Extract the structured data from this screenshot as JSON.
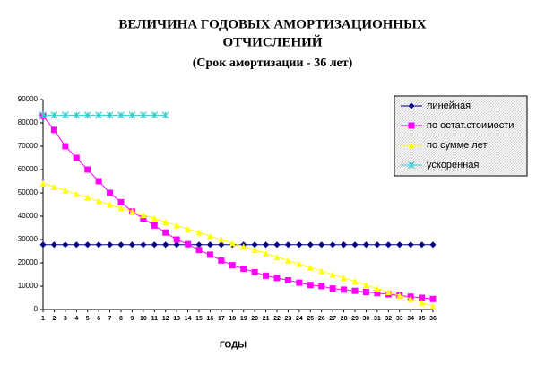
{
  "chart_data": {
    "type": "line",
    "title": [
      "ВЕЛИЧИНА ГОДОВЫХ АМОРТИЗАЦИОННЫХ",
      "ОТЧИСЛЕНИЙ"
    ],
    "subtitle": "(Срок амортизации - 36 лет)",
    "x_label": "ГОДЫ",
    "x": [
      1,
      2,
      3,
      4,
      5,
      6,
      7,
      8,
      9,
      10,
      11,
      12,
      13,
      14,
      15,
      16,
      17,
      18,
      19,
      20,
      21,
      22,
      23,
      24,
      25,
      26,
      27,
      28,
      29,
      30,
      31,
      32,
      33,
      34,
      35,
      36
    ],
    "xlim": [
      1,
      36
    ],
    "ylim": [
      0,
      90000
    ],
    "yticks": [
      0,
      10000,
      20000,
      30000,
      40000,
      50000,
      60000,
      70000,
      80000,
      90000
    ],
    "grid": false,
    "legend": "upper right",
    "series": [
      {
        "name": "линейная",
        "color": "#000080",
        "marker": "diamond",
        "values": [
          27778,
          27778,
          27778,
          27778,
          27778,
          27778,
          27778,
          27778,
          27778,
          27778,
          27778,
          27778,
          27778,
          27778,
          27778,
          27778,
          27778,
          27778,
          27778,
          27778,
          27778,
          27778,
          27778,
          27778,
          27778,
          27778,
          27778,
          27778,
          27778,
          27778,
          27778,
          27778,
          27778,
          27778,
          27778,
          27778
        ]
      },
      {
        "name": "по остат.стоимости",
        "color": "#ff00ff",
        "marker": "square",
        "values": [
          83000,
          77000,
          70000,
          65000,
          60000,
          55000,
          50000,
          46000,
          42000,
          39000,
          36000,
          33000,
          30000,
          28000,
          25500,
          23500,
          21000,
          19000,
          17500,
          16000,
          14500,
          13500,
          12500,
          11500,
          10500,
          10000,
          9000,
          8500,
          8000,
          7500,
          7000,
          6500,
          6000,
          5500,
          5000,
          4500
        ]
      },
      {
        "name": "по сумме лет",
        "color": "#ffff00",
        "marker": "triangle",
        "values": [
          54054,
          52553,
          51051,
          49550,
          48048,
          46547,
          45045,
          43544,
          42042,
          40541,
          39039,
          37538,
          36036,
          34535,
          33033,
          31532,
          30030,
          28529,
          27027,
          25526,
          24024,
          22523,
          21021,
          19520,
          18018,
          16517,
          15015,
          13514,
          12012,
          10511,
          9009,
          7508,
          6006,
          4505,
          3003,
          1502
        ]
      },
      {
        "name": "ускоренная",
        "color": "#33cccc",
        "marker": "cross",
        "values": [
          83333,
          83333,
          83333,
          83333,
          83333,
          83333,
          83333,
          83333,
          83333,
          83333,
          83333,
          83333,
          null,
          null,
          null,
          null,
          null,
          null,
          null,
          null,
          null,
          null,
          null,
          null,
          null,
          null,
          null,
          null,
          null,
          null,
          null,
          null,
          null,
          null,
          null,
          null
        ]
      }
    ]
  }
}
